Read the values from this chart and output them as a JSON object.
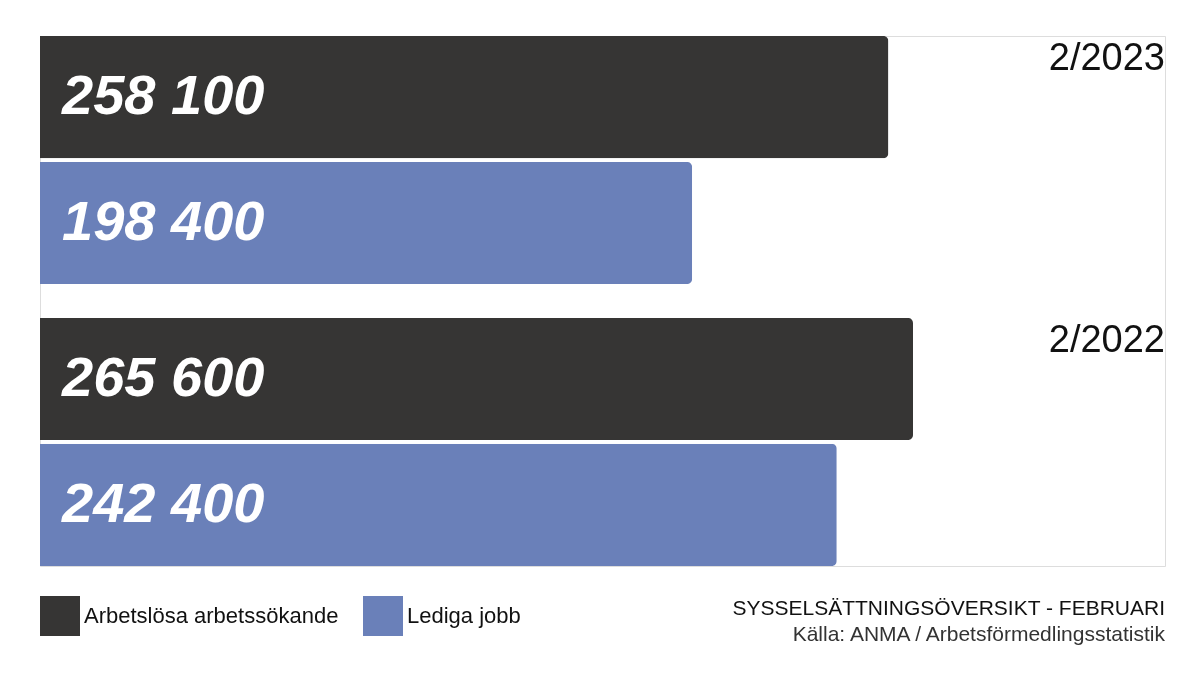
{
  "chart_data": {
    "type": "bar",
    "orientation": "horizontal",
    "title": "SYSSELSÄTTNINGSÖVERSIKT - FEBRUARI",
    "categories": [
      "2/2023",
      "2/2022"
    ],
    "series": [
      {
        "name": "Arbetslösa arbetssökande",
        "color": "#363534",
        "values": [
          258100,
          265600
        ],
        "value_labels": [
          "258 100",
          "265 600"
        ]
      },
      {
        "name": "Lediga jobb",
        "color": "#6a80b9",
        "values": [
          198400,
          242400
        ],
        "value_labels": [
          "198 400",
          "242 400"
        ]
      }
    ],
    "annotations": [
      "Källa: ANMA / Arbetsförmedlingsstatistik"
    ],
    "legend": "bottom left"
  }
}
